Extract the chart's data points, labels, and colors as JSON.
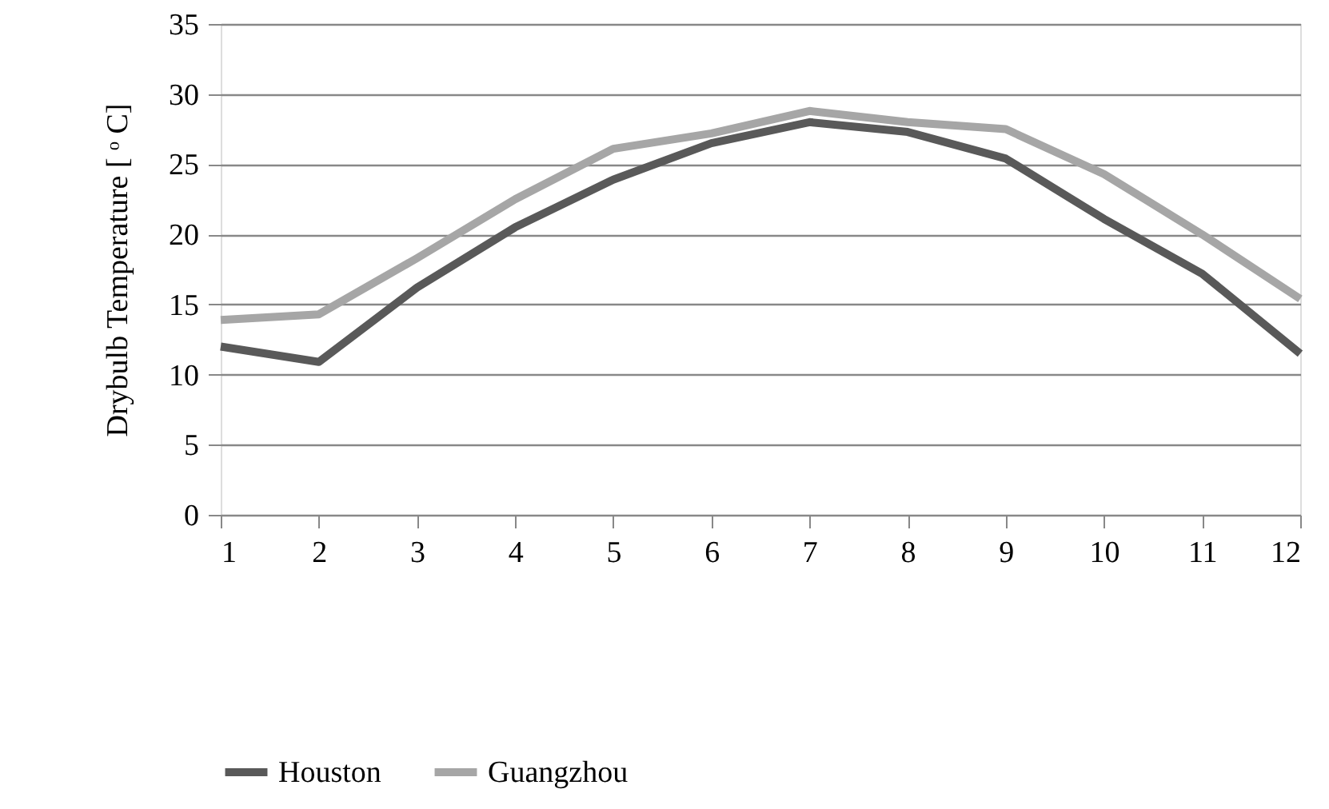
{
  "chart_data": {
    "type": "line",
    "ylabel": "Drybulb Temperature [ ᵒ C]",
    "x": [
      1,
      2,
      3,
      4,
      5,
      6,
      7,
      8,
      9,
      10,
      11,
      12
    ],
    "series": [
      {
        "name": "Houston",
        "color": "#595959",
        "values": [
          12.0,
          10.9,
          16.2,
          20.5,
          23.9,
          26.5,
          28.0,
          27.3,
          25.4,
          21.1,
          17.2,
          11.5
        ]
      },
      {
        "name": "Guangzhou",
        "color": "#a6a6a6",
        "values": [
          13.9,
          14.3,
          18.3,
          22.5,
          26.1,
          27.2,
          28.8,
          28.0,
          27.5,
          24.3,
          20.0,
          15.4
        ]
      }
    ],
    "xlim": [
      1,
      12
    ],
    "xticks": [
      1,
      2,
      3,
      4,
      5,
      6,
      7,
      8,
      9,
      10,
      11,
      12
    ],
    "ylim": [
      0,
      35
    ],
    "yticks": [
      0,
      5,
      10,
      15,
      20,
      25,
      30,
      35
    ],
    "grid": "y",
    "legend": "bottom",
    "marker": "none",
    "line_style": "solid"
  }
}
